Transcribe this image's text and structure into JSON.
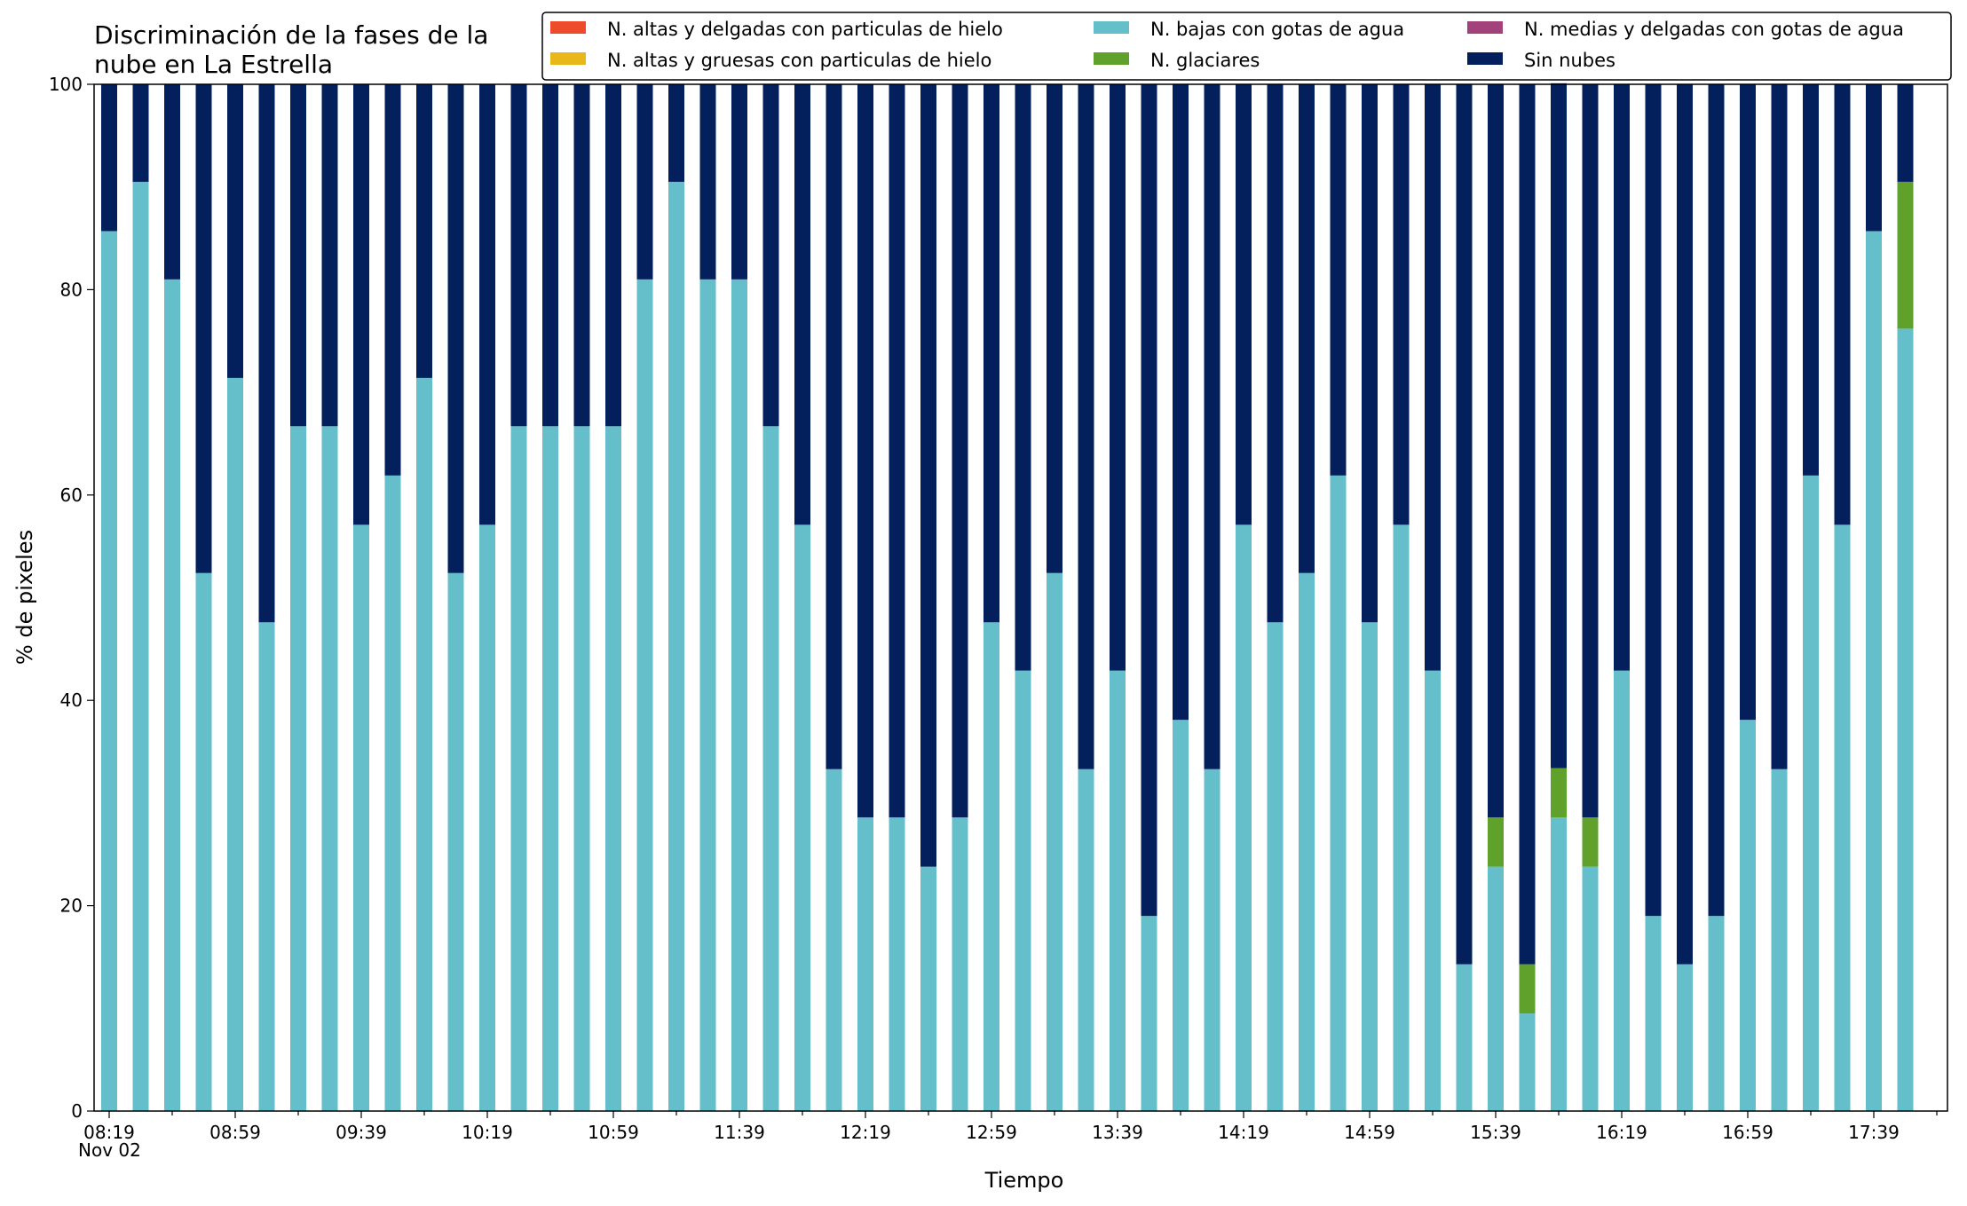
{
  "chart_data": {
    "type": "bar",
    "stacked": true,
    "title_lines": [
      "Discriminación de la fases de la",
      "nube en La Estrella"
    ],
    "xlabel": "Tiempo",
    "ylabel": "% de pixeles",
    "ylim": [
      0,
      100
    ],
    "yticks": [
      0,
      20,
      40,
      60,
      80,
      100
    ],
    "grid": false,
    "legend_position": "top-right",
    "date_label": "Nov 02",
    "categories": [
      "08:19",
      "08:29",
      "08:39",
      "08:49",
      "08:59",
      "09:09",
      "09:19",
      "09:29",
      "09:39",
      "09:49",
      "09:59",
      "10:09",
      "10:19",
      "10:29",
      "10:39",
      "10:49",
      "10:59",
      "11:09",
      "11:19",
      "11:29",
      "11:39",
      "11:49",
      "11:59",
      "12:09",
      "12:19",
      "12:29",
      "12:39",
      "12:49",
      "12:59",
      "13:09",
      "13:19",
      "13:29",
      "13:39",
      "13:49",
      "13:59",
      "14:09",
      "14:19",
      "14:29",
      "14:39",
      "14:49",
      "14:59",
      "15:09",
      "15:19",
      "15:29",
      "15:39",
      "15:49",
      "15:59",
      "16:09",
      "16:19",
      "16:29",
      "16:39",
      "16:49",
      "16:59",
      "17:09",
      "17:19",
      "17:29",
      "17:39",
      "17:49"
    ],
    "xtick_labels": [
      "08:19",
      "08:59",
      "09:39",
      "10:19",
      "10:59",
      "11:39",
      "12:19",
      "12:59",
      "13:39",
      "14:19",
      "14:59",
      "15:39",
      "16:19",
      "16:59",
      "17:39"
    ],
    "series": [
      {
        "name": "N. altas y delgadas con particulas de hielo",
        "color": "#ee4a2c",
        "values": [
          0,
          0,
          0,
          0,
          0,
          0,
          0,
          0,
          0,
          0,
          0,
          0,
          0,
          0,
          0,
          0,
          0,
          0,
          0,
          0,
          0,
          0,
          0,
          0,
          0,
          0,
          0,
          0,
          0,
          0,
          0,
          0,
          0,
          0,
          0,
          0,
          0,
          0,
          0,
          0,
          0,
          0,
          0,
          0,
          0,
          0,
          0,
          0,
          0,
          0,
          0,
          0,
          0,
          0,
          0,
          0,
          0,
          0
        ]
      },
      {
        "name": "N. altas y gruesas con particulas de hielo",
        "color": "#e8b71a",
        "values": [
          0,
          0,
          0,
          0,
          0,
          0,
          0,
          0,
          0,
          0,
          0,
          0,
          0,
          0,
          0,
          0,
          0,
          0,
          0,
          0,
          0,
          0,
          0,
          0,
          0,
          0,
          0,
          0,
          0,
          0,
          0,
          0,
          0,
          0,
          0,
          0,
          0,
          0,
          0,
          0,
          0,
          0,
          0,
          0,
          0,
          0,
          0,
          0,
          0,
          0,
          0,
          0,
          0,
          0,
          0,
          0,
          0,
          0
        ]
      },
      {
        "name": "N. bajas con gotas de agua",
        "color": "#65bfcb",
        "values": [
          85.7,
          90.5,
          81.0,
          52.4,
          71.4,
          47.6,
          66.7,
          66.7,
          57.1,
          61.9,
          71.4,
          52.4,
          57.1,
          66.7,
          66.7,
          66.7,
          66.7,
          81.0,
          90.5,
          81.0,
          81.0,
          66.7,
          57.1,
          33.3,
          28.6,
          28.6,
          23.8,
          28.6,
          47.6,
          42.9,
          52.4,
          33.3,
          42.9,
          19.0,
          38.1,
          33.3,
          57.1,
          47.6,
          52.4,
          61.9,
          47.6,
          57.1,
          42.9,
          14.3,
          23.8,
          9.5,
          28.6,
          23.8,
          42.9,
          19.0,
          14.3,
          19.0,
          38.1,
          33.3,
          61.9,
          57.1,
          85.7,
          76.2
        ]
      },
      {
        "name": "N. glaciares",
        "color": "#60a12c",
        "values": [
          0,
          0,
          0,
          0,
          0,
          0,
          0,
          0,
          0,
          0,
          0,
          0,
          0,
          0,
          0,
          0,
          0,
          0,
          0,
          0,
          0,
          0,
          0,
          0,
          0,
          0,
          0,
          0,
          0,
          0,
          0,
          0,
          0,
          0,
          0,
          0,
          0,
          0,
          0,
          0,
          0,
          0,
          0,
          0,
          4.8,
          4.8,
          4.8,
          4.8,
          0,
          0,
          0,
          0,
          0,
          0,
          0,
          0,
          0,
          14.3
        ]
      },
      {
        "name": "N. medias y delgadas con gotas de agua",
        "color": "#a3427a",
        "values": [
          0,
          0,
          0,
          0,
          0,
          0,
          0,
          0,
          0,
          0,
          0,
          0,
          0,
          0,
          0,
          0,
          0,
          0,
          0,
          0,
          0,
          0,
          0,
          0,
          0,
          0,
          0,
          0,
          0,
          0,
          0,
          0,
          0,
          0,
          0,
          0,
          0,
          0,
          0,
          0,
          0,
          0,
          0,
          0,
          0,
          0,
          0,
          0,
          0,
          0,
          0,
          0,
          0,
          0,
          0,
          0,
          0,
          0
        ]
      },
      {
        "name": "Sin nubes",
        "color": "#03205c",
        "values": [
          14.3,
          9.5,
          19.0,
          47.6,
          28.6,
          52.4,
          33.3,
          33.3,
          42.9,
          38.1,
          28.6,
          47.6,
          42.9,
          33.3,
          33.3,
          33.3,
          33.3,
          19.0,
          9.5,
          19.0,
          19.0,
          33.3,
          42.9,
          66.7,
          71.4,
          71.4,
          76.2,
          71.4,
          52.4,
          57.1,
          47.6,
          66.7,
          57.1,
          81.0,
          61.9,
          66.7,
          42.9,
          52.4,
          47.6,
          38.1,
          52.4,
          42.9,
          57.1,
          85.7,
          71.4,
          85.7,
          66.7,
          71.4,
          57.1,
          81.0,
          85.7,
          81.0,
          61.9,
          66.7,
          38.1,
          42.9,
          14.3,
          9.5
        ]
      }
    ],
    "stack_order": [
      2,
      3,
      4,
      0,
      1,
      5
    ],
    "legend_order": [
      0,
      1,
      2,
      3,
      4,
      5
    ]
  }
}
